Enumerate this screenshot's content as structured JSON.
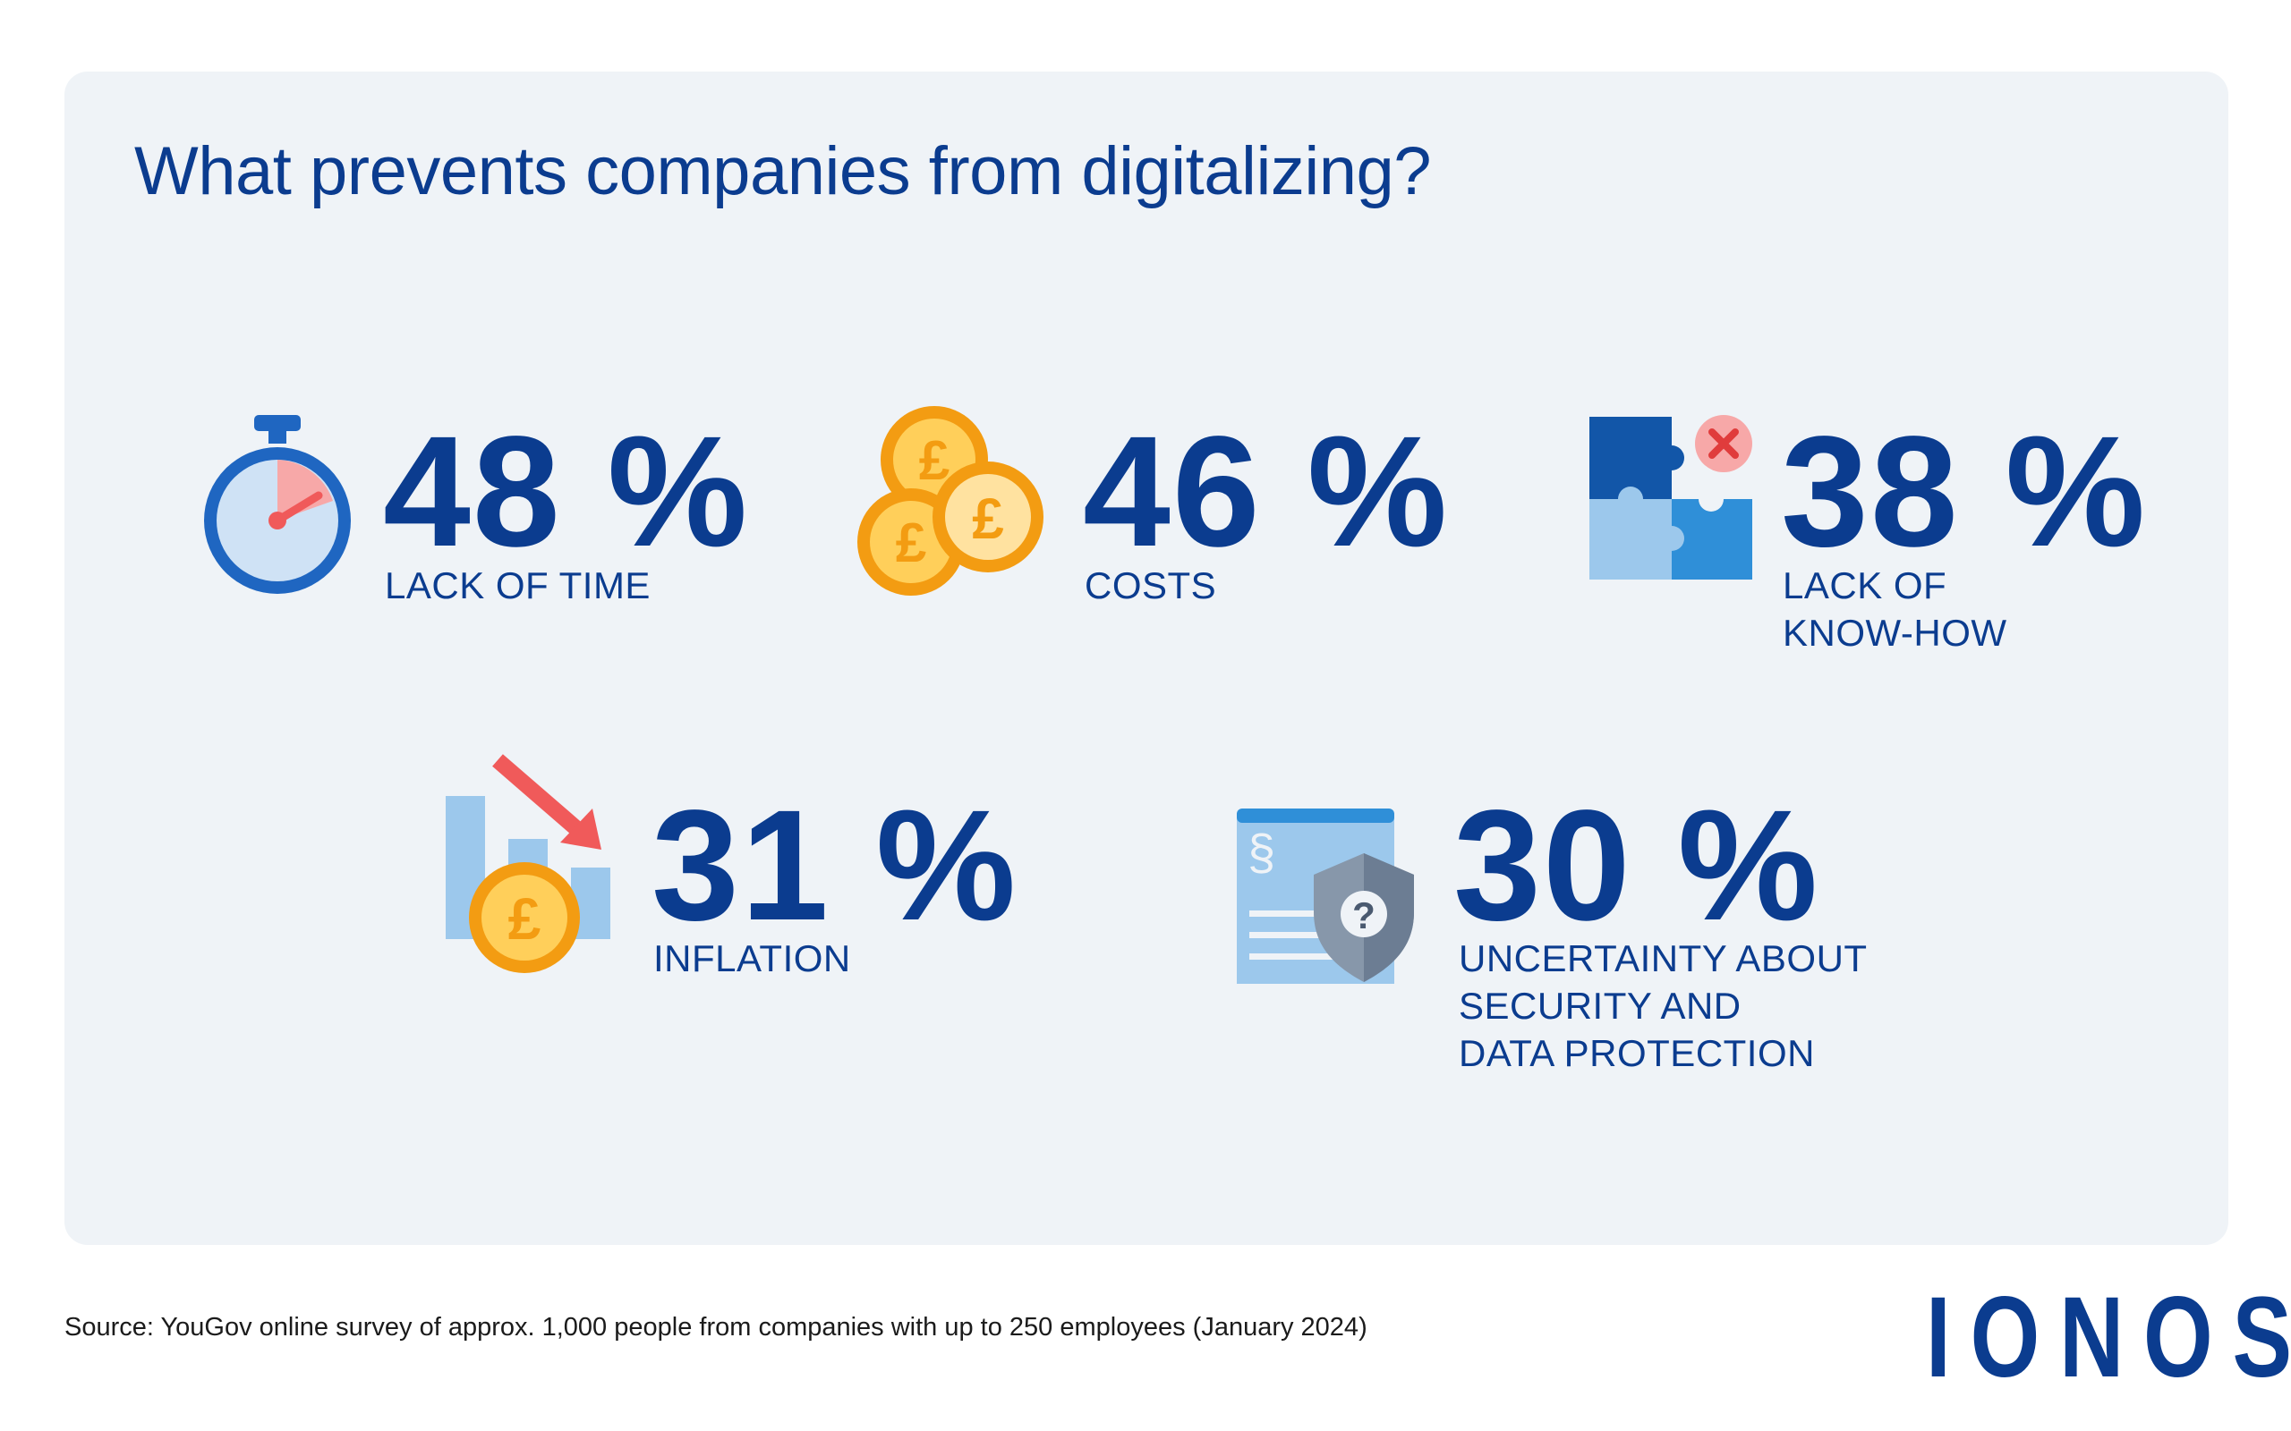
{
  "title": "What prevents companies from digitalizing?",
  "stats": [
    {
      "value": "48 %",
      "label_lines": [
        "LACK OF TIME"
      ],
      "icon": "stopwatch-icon"
    },
    {
      "value": "46 %",
      "label_lines": [
        "COSTS"
      ],
      "icon": "pound-coins-icon"
    },
    {
      "value": "38 %",
      "label_lines": [
        "LACK OF",
        "KNOW-HOW"
      ],
      "icon": "puzzle-icon"
    },
    {
      "value": "31 %",
      "label_lines": [
        "INFLATION"
      ],
      "icon": "declining-chart-icon"
    },
    {
      "value": "30 %",
      "label_lines": [
        "UNCERTAINTY ABOUT",
        "SECURITY AND",
        "DATA PROTECTION"
      ],
      "icon": "document-shield-icon"
    }
  ],
  "source": "Source: YouGov online survey of approx. 1,000 people from companies with up to 250 employees (January 2024)",
  "brand": "IONOS",
  "colors": {
    "primary": "#0b3c8f",
    "panel": "#eff3f7",
    "accent_red": "#f05a5a",
    "coin_gold": "#f5a623"
  }
}
